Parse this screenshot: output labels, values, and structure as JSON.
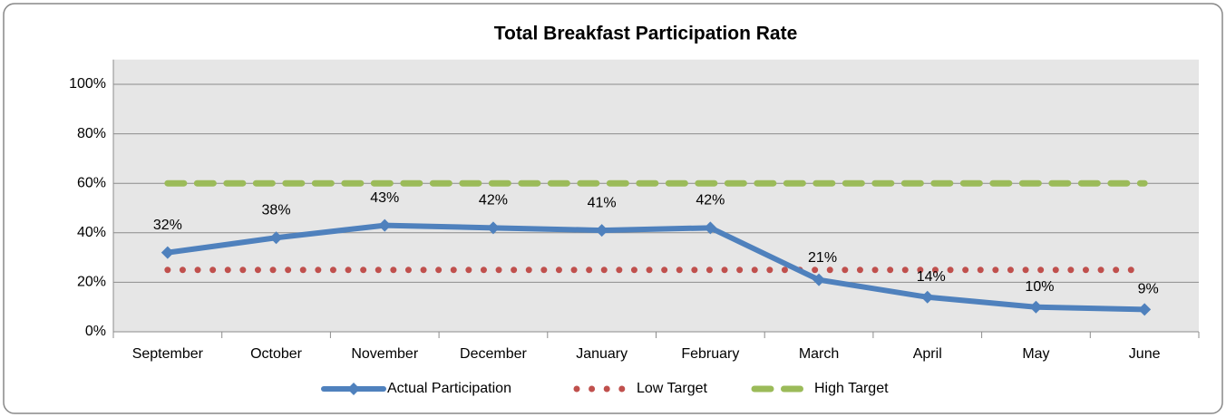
{
  "chart_data": {
    "type": "line",
    "title": "Total Breakfast Participation Rate",
    "categories": [
      "September",
      "October",
      "November",
      "December",
      "January",
      "February",
      "March",
      "April",
      "May",
      "June"
    ],
    "series": [
      {
        "name": "Actual Participation",
        "color": "#4f81bd",
        "values": [
          32,
          38,
          43,
          42,
          41,
          42,
          21,
          14,
          10,
          9
        ],
        "value_labels": [
          "32%",
          "38%",
          "43%",
          "42%",
          "41%",
          "42%",
          "21%",
          "14%",
          "10%",
          "9%"
        ]
      },
      {
        "name": "Low Target",
        "color": "#c0504d",
        "values": [
          25,
          25,
          25,
          25,
          25,
          25,
          25,
          25,
          25,
          25
        ]
      },
      {
        "name": "High Target",
        "color": "#9bbb59",
        "values": [
          60,
          60,
          60,
          60,
          60,
          60,
          60,
          60,
          60,
          60
        ]
      }
    ],
    "ylim": [
      0,
      110
    ],
    "yticks": [
      {
        "value": 0,
        "label": "0%"
      },
      {
        "value": 20,
        "label": "20%"
      },
      {
        "value": 40,
        "label": "40%"
      },
      {
        "value": 60,
        "label": "60%"
      },
      {
        "value": 80,
        "label": "80%"
      },
      {
        "value": 100,
        "label": "100%"
      }
    ],
    "grid": true,
    "legend": "bottom"
  }
}
